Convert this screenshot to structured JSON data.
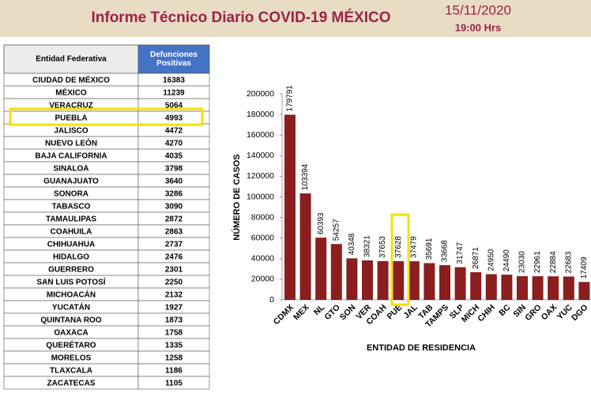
{
  "header": {
    "title": "Informe Técnico Diario COVID-19 MÉXICO",
    "date": "15/11/2020",
    "time": "19:00 Hrs"
  },
  "table": {
    "columns": [
      "Entidad Federativa",
      "Defunciones Positivas"
    ],
    "rows": [
      [
        "CIUDAD DE MÉXICO",
        16383
      ],
      [
        "MÉXICO",
        11239
      ],
      [
        "VERACRUZ",
        5064
      ],
      [
        "PUEBLA",
        4993
      ],
      [
        "JALISCO",
        4472
      ],
      [
        "NUEVO LEÓN",
        4270
      ],
      [
        "BAJA CALIFORNIA",
        4035
      ],
      [
        "SINALOA",
        3798
      ],
      [
        "GUANAJUATO",
        3640
      ],
      [
        "SONORA",
        3286
      ],
      [
        "TABASCO",
        3090
      ],
      [
        "TAMAULIPAS",
        2872
      ],
      [
        "COAHUILA",
        2863
      ],
      [
        "CHIHUAHUA",
        2737
      ],
      [
        "HIDALGO",
        2476
      ],
      [
        "GUERRERO",
        2301
      ],
      [
        "SAN LUIS POTOSÍ",
        2250
      ],
      [
        "MICHOACÁN",
        2132
      ],
      [
        "YUCATÁN",
        1927
      ],
      [
        "QUINTANA ROO",
        1873
      ],
      [
        "OAXACA",
        1758
      ],
      [
        "QUERÉTARO",
        1335
      ],
      [
        "MORELOS",
        1258
      ],
      [
        "TLAXCALA",
        1186
      ],
      [
        "ZACATECAS",
        1105
      ]
    ]
  },
  "chart_data": {
    "type": "bar",
    "x_label": "ENTIDAD DE RESIDENCIA",
    "y_label": "NÚMERO DE CASOS",
    "categories": [
      "CDMX",
      "MEX",
      "NL",
      "GTO",
      "SON",
      "VER",
      "COAH",
      "PUE",
      "JAL",
      "TAB",
      "TAMPS",
      "SLP",
      "MICH",
      "CHIH",
      "BC",
      "SIN",
      "GRO",
      "OAX",
      "YUC",
      "DGO"
    ],
    "values": [
      179791,
      103394,
      60393,
      54257,
      40348,
      38321,
      37653,
      37628,
      37479,
      35691,
      33668,
      31747,
      26871,
      24950,
      24490,
      23030,
      22961,
      22884,
      22683,
      17409
    ],
    "color": "#8b1e1e",
    "ylim": [
      0,
      200000
    ],
    "yticks": [
      0,
      20000,
      40000,
      60000,
      80000,
      100000,
      120000,
      140000,
      160000,
      180000,
      200000
    ],
    "grid": false
  }
}
